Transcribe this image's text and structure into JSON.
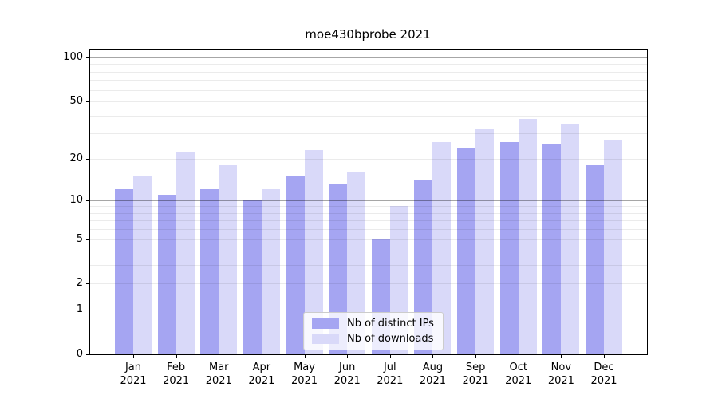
{
  "chart_data": {
    "type": "bar",
    "title": "moe430bprobe 2021",
    "yscale": "log1p",
    "ylim": [
      0,
      110
    ],
    "yticks": [
      100,
      50,
      20,
      10,
      5,
      2,
      1,
      0
    ],
    "major_grid_values": [
      1,
      10,
      100
    ],
    "minor_grid_values": [
      2,
      3,
      4,
      5,
      6,
      7,
      8,
      9,
      20,
      30,
      40,
      50,
      60,
      70,
      80,
      90
    ],
    "grid": true,
    "legend_position": "lower center",
    "categories": [
      {
        "month": "Jan",
        "year": "2021"
      },
      {
        "month": "Feb",
        "year": "2021"
      },
      {
        "month": "Mar",
        "year": "2021"
      },
      {
        "month": "Apr",
        "year": "2021"
      },
      {
        "month": "May",
        "year": "2021"
      },
      {
        "month": "Jun",
        "year": "2021"
      },
      {
        "month": "Jul",
        "year": "2021"
      },
      {
        "month": "Aug",
        "year": "2021"
      },
      {
        "month": "Sep",
        "year": "2021"
      },
      {
        "month": "Oct",
        "year": "2021"
      },
      {
        "month": "Nov",
        "year": "2021"
      },
      {
        "month": "Dec",
        "year": "2021"
      }
    ],
    "series": [
      {
        "name": "Nb of distinct IPs",
        "color": "#a5a5f2",
        "values": [
          12,
          11,
          12,
          10,
          15,
          13,
          5,
          14,
          24,
          26,
          25,
          18
        ]
      },
      {
        "name": "Nb of downloads",
        "color": "#d9d9f9",
        "values": [
          15,
          22,
          18,
          12,
          23,
          16,
          9,
          26,
          32,
          38,
          35,
          27
        ]
      }
    ]
  },
  "colors": {
    "background": "#ffffff",
    "spine": "#000000",
    "major_grid": "rgba(0,0,0,0.35)",
    "minor_grid": "rgba(0,0,0,0.08)",
    "text": "#000000"
  }
}
